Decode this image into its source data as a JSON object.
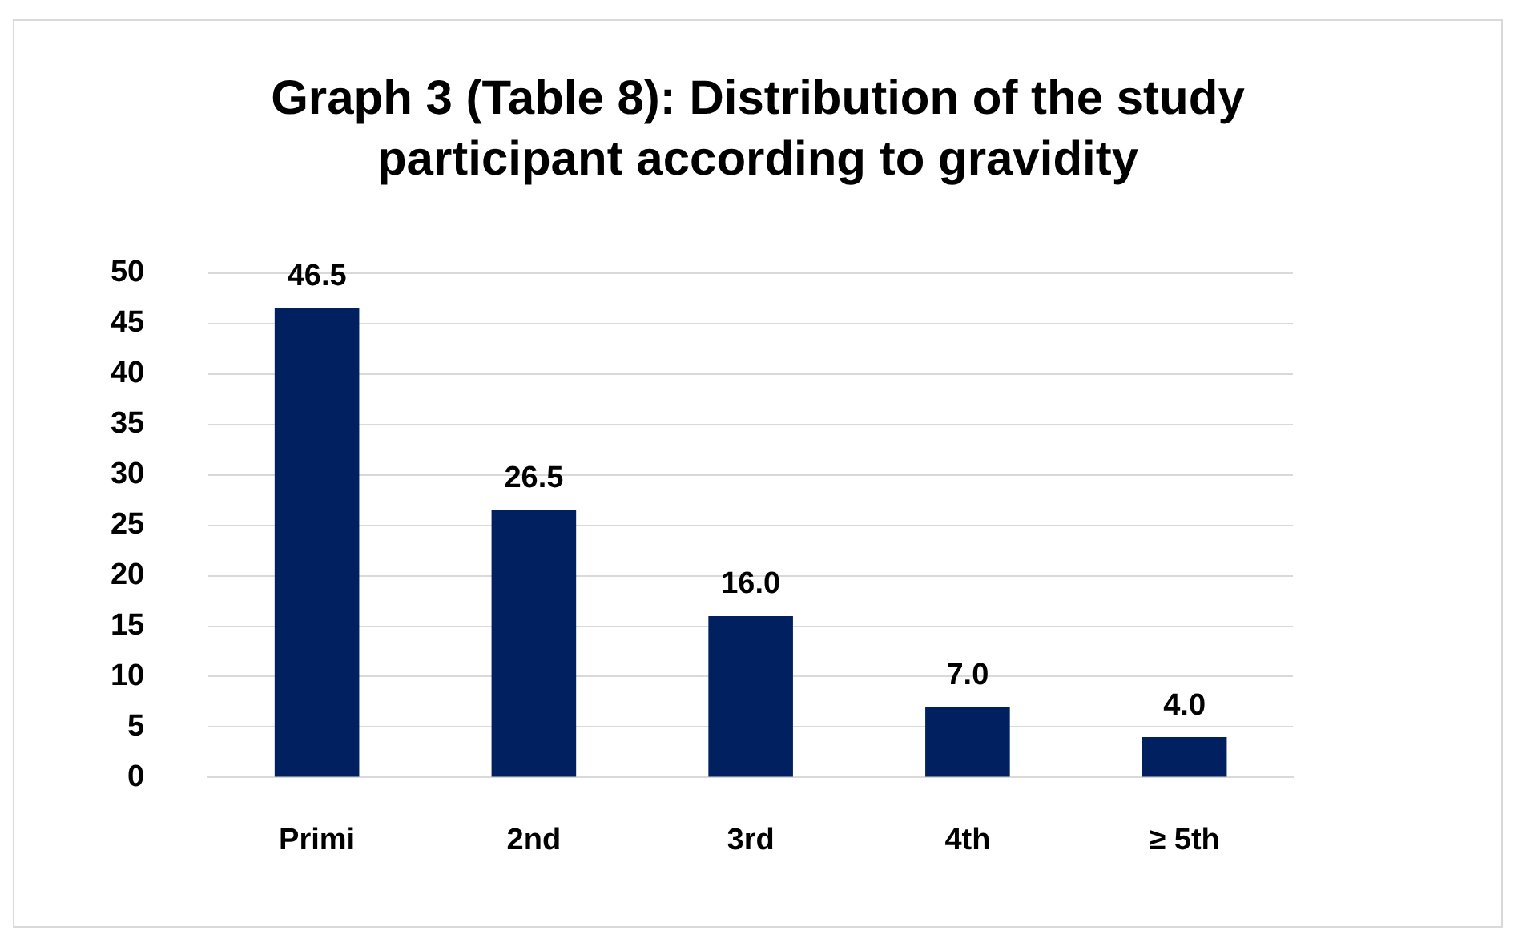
{
  "chart_data": {
    "type": "bar",
    "title": "Graph 3 (Table 8): Distribution of the study participant according to gravidity",
    "categories": [
      "Primi",
      "2nd",
      "3rd",
      "4th",
      "≥ 5th"
    ],
    "values": [
      46.5,
      26.5,
      16,
      7,
      4
    ],
    "value_labels": [
      "46.5",
      "26.5",
      "16.0",
      "7.0",
      "4.0"
    ],
    "color": "#002060",
    "ylim": [
      0,
      50
    ],
    "yticks": [
      0,
      5,
      10,
      15,
      20,
      25,
      30,
      35,
      40,
      45,
      50
    ],
    "grid": "y"
  }
}
